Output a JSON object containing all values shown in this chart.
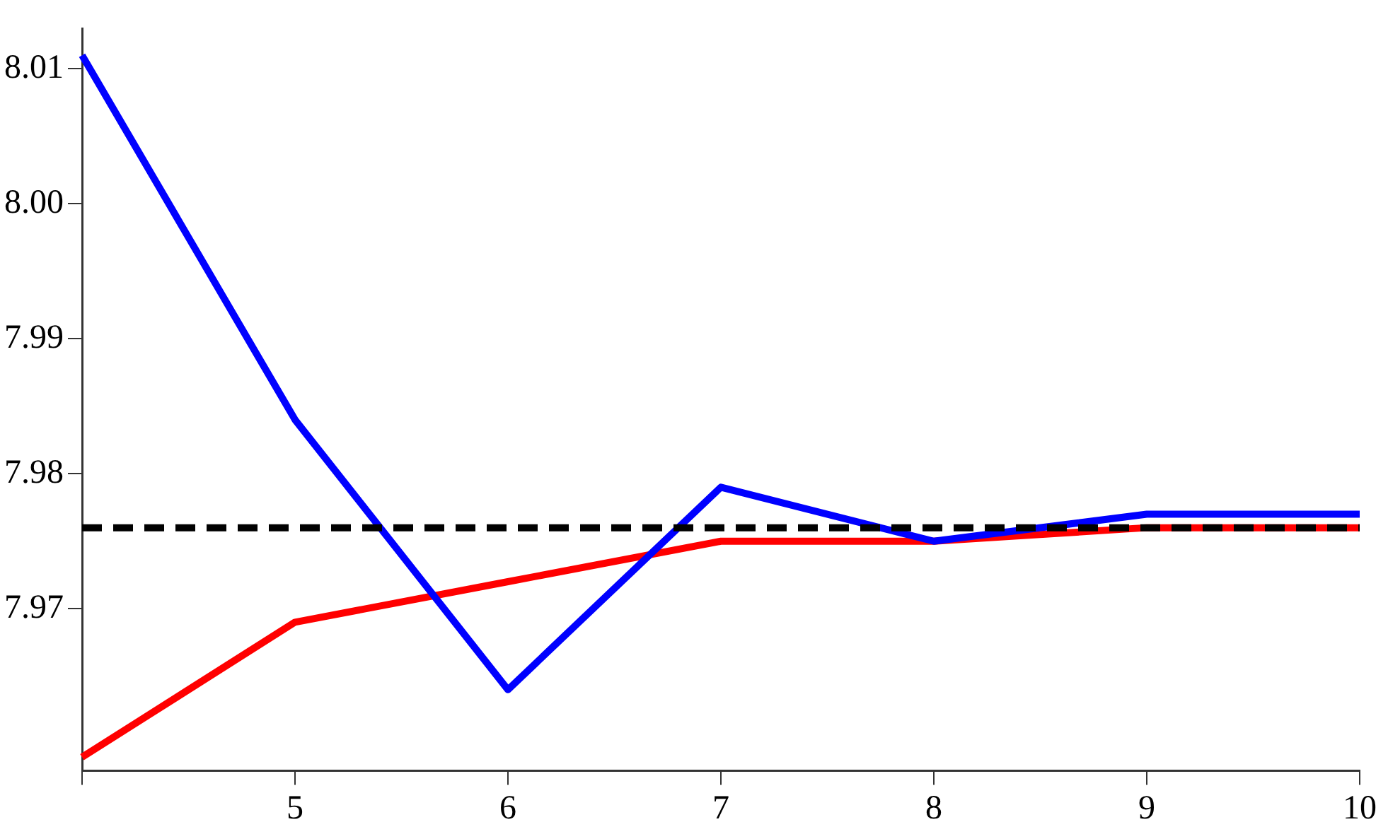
{
  "chart_data": {
    "type": "line",
    "x": [
      4,
      5,
      6,
      7,
      8,
      9,
      10
    ],
    "series": [
      {
        "color": "#0000ff",
        "values": [
          8.011,
          7.984,
          7.964,
          7.979,
          7.975,
          7.977,
          7.977
        ]
      },
      {
        "color": "#ff0000",
        "values": [
          7.959,
          7.969,
          7.972,
          7.975,
          7.975,
          7.976,
          7.976
        ]
      }
    ],
    "ref_lines": [
      {
        "axis": "y",
        "value": 7.976,
        "color": "#000000",
        "line_style": "dashed"
      }
    ],
    "xlim": [
      4,
      10
    ],
    "xticks": [
      {
        "value": 4,
        "label": null
      },
      5,
      6,
      7,
      8,
      9,
      10
    ],
    "ylim": [
      7.958,
      8.013
    ],
    "yticks": [
      7.97,
      7.98,
      7.99,
      {
        "value": 8.0,
        "label": "8.00"
      },
      8.01
    ],
    "grid": false,
    "legend": false,
    "marker": "none",
    "line_style": "solid"
  }
}
